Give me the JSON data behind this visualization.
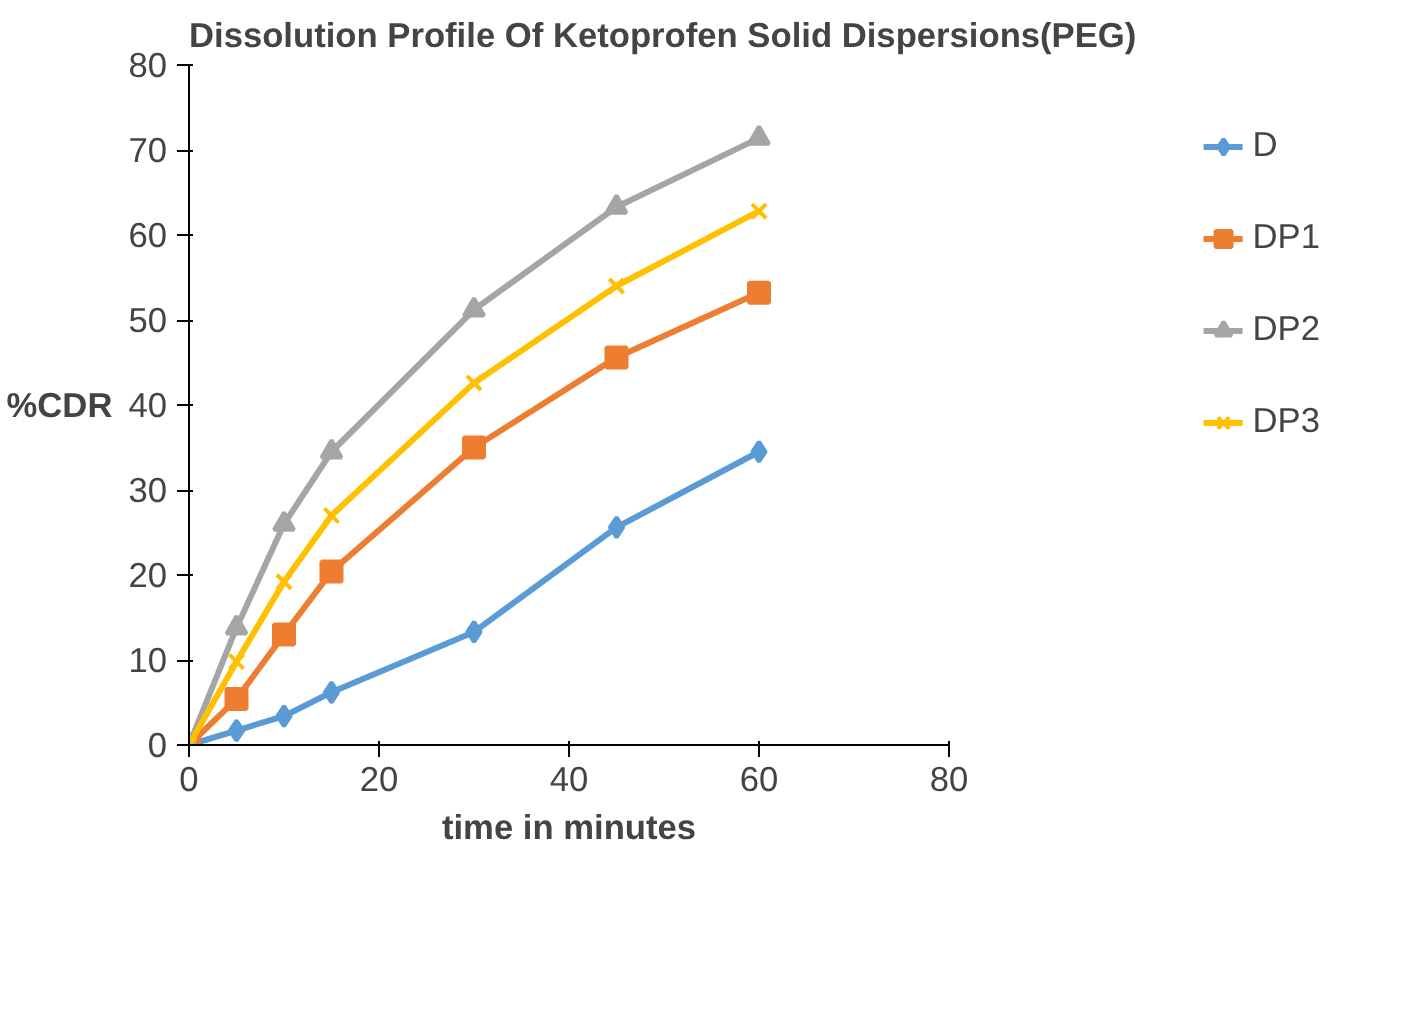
{
  "chart_data": {
    "type": "line",
    "title": "Dissolution Profile Of Ketoprofen Solid Dispersions(PEG)",
    "xlabel": "time in minutes",
    "ylabel": "%CDR",
    "x": [
      0,
      5,
      10,
      15,
      30,
      45,
      60
    ],
    "xlim": [
      0,
      80
    ],
    "xticks": [
      0,
      20,
      40,
      60,
      80
    ],
    "ylim": [
      0,
      80
    ],
    "yticks": [
      0,
      10,
      20,
      30,
      40,
      50,
      60,
      70,
      80
    ],
    "grid": false,
    "legend": "right",
    "series": [
      {
        "name": "D",
        "color": "#5b9bd5",
        "marker": "diamond",
        "values": [
          0,
          1.7,
          3.4,
          6.2,
          13.3,
          25.6,
          34.5
        ]
      },
      {
        "name": "DP1",
        "color": "#ed7d31",
        "marker": "square",
        "values": [
          0,
          5.4,
          13,
          20.4,
          35,
          45.6,
          53.2
        ]
      },
      {
        "name": "DP2",
        "color": "#a5a5a5",
        "marker": "triangle",
        "values": [
          0,
          13.8,
          26,
          34.5,
          51.2,
          63.3,
          71.4
        ]
      },
      {
        "name": "DP3",
        "color": "#ffc000",
        "marker": "x",
        "values": [
          0,
          9.8,
          19.2,
          27,
          42.6,
          54,
          62.8
        ]
      }
    ]
  }
}
